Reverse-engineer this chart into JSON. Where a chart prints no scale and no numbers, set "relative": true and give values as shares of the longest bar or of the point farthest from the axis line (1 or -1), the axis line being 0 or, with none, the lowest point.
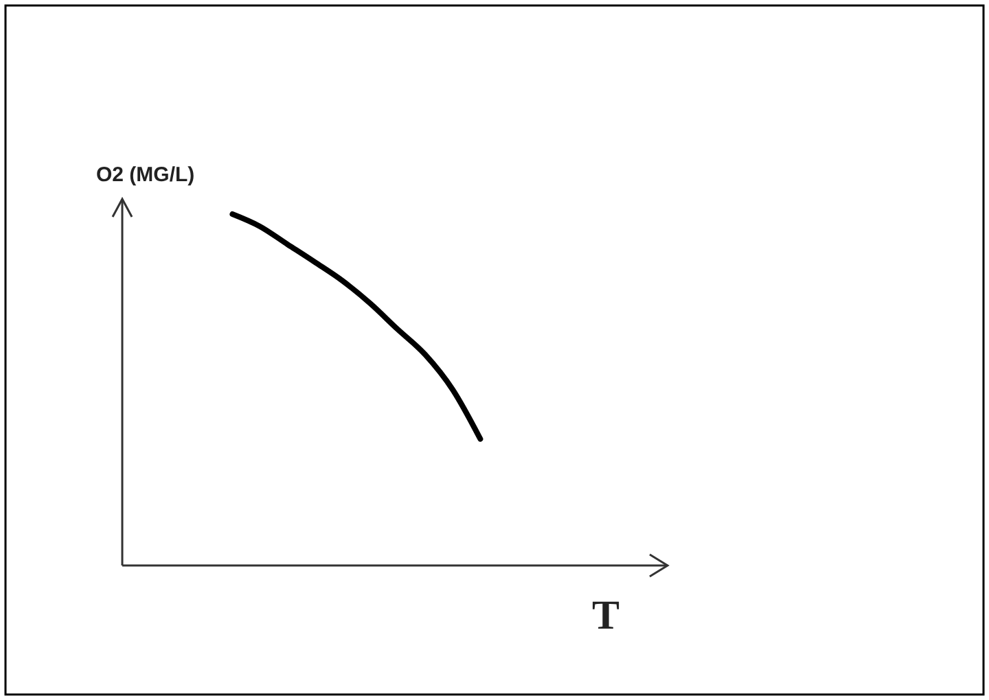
{
  "chart_data": {
    "type": "line",
    "relative": true,
    "xlabel": "T",
    "ylabel": "O2 (MG/L)",
    "categories": [
      null,
      null,
      null,
      null,
      null,
      null,
      null,
      null,
      null,
      null,
      null,
      null,
      null,
      null,
      null,
      null,
      null,
      null,
      null,
      null
    ],
    "series": [
      {
        "color": "#000000",
        "values": [
          null,
          null,
          null,
          null,
          1,
          0.965,
          0.914,
          0.863,
          0.81,
          0.746,
          0.672,
          0.6,
          0.5,
          0.36,
          null,
          null,
          null,
          null,
          null,
          null
        ]
      }
    ],
    "marker": "none",
    "line_style": "solid"
  }
}
